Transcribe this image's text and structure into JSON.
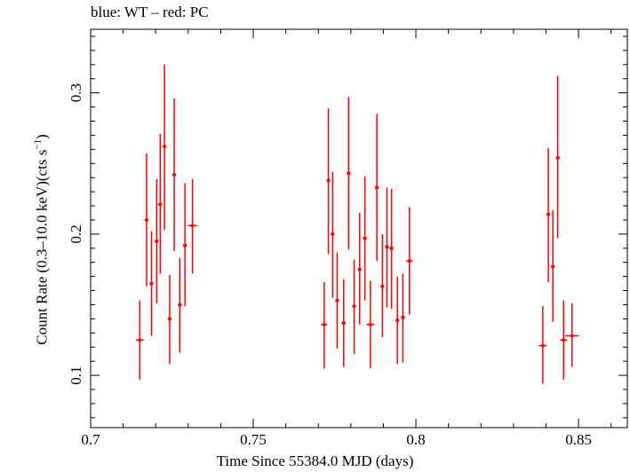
{
  "chart_data": {
    "type": "scatter",
    "title": "blue: WT – red: PC",
    "xlabel": "Time Since 55384.0 MJD (days)",
    "ylabel": "Count Rate (0.3–10.0 keV)(cts s",
    "ylabel_unit_exp": "−1",
    "ylabel_close": ")",
    "xlim": [
      0.7,
      0.865
    ],
    "ylim": [
      0.063,
      0.345
    ],
    "xticks": [
      0.7,
      0.75,
      0.8,
      0.85
    ],
    "xtick_labels": [
      "0.7",
      "0.75",
      "0.8",
      "0.85"
    ],
    "yticks": [
      0.1,
      0.2,
      0.3
    ],
    "ytick_labels": [
      "0.1",
      "0.2",
      "0.3"
    ],
    "grid": false,
    "series": [
      {
        "color": "#ff0000",
        "points": [
          {
            "x": 0.7151,
            "y": 0.125,
            "ylo": 0.097,
            "yhi": 0.153,
            "xerr": 0.0012
          },
          {
            "x": 0.7172,
            "y": 0.21,
            "ylo": 0.163,
            "yhi": 0.257,
            "xerr": 0.0006
          },
          {
            "x": 0.7187,
            "y": 0.165,
            "ylo": 0.128,
            "yhi": 0.202,
            "xerr": 0.0006
          },
          {
            "x": 0.7203,
            "y": 0.195,
            "ylo": 0.151,
            "yhi": 0.239,
            "xerr": 0.0006
          },
          {
            "x": 0.7214,
            "y": 0.221,
            "ylo": 0.172,
            "yhi": 0.271,
            "xerr": 0.0006
          },
          {
            "x": 0.7227,
            "y": 0.262,
            "ylo": 0.203,
            "yhi": 0.32,
            "xerr": 0.0006
          },
          {
            "x": 0.7243,
            "y": 0.14,
            "ylo": 0.108,
            "yhi": 0.171,
            "xerr": 0.0006
          },
          {
            "x": 0.7257,
            "y": 0.242,
            "ylo": 0.188,
            "yhi": 0.296,
            "xerr": 0.0006
          },
          {
            "x": 0.7274,
            "y": 0.15,
            "ylo": 0.116,
            "yhi": 0.183,
            "xerr": 0.0006
          },
          {
            "x": 0.729,
            "y": 0.192,
            "ylo": 0.149,
            "yhi": 0.236,
            "xerr": 0.0006
          },
          {
            "x": 0.7313,
            "y": 0.206,
            "ylo": 0.172,
            "yhi": 0.239,
            "xerr": 0.0014
          },
          {
            "x": 0.7718,
            "y": 0.136,
            "ylo": 0.105,
            "yhi": 0.166,
            "xerr": 0.001
          },
          {
            "x": 0.7731,
            "y": 0.238,
            "ylo": 0.186,
            "yhi": 0.289,
            "xerr": 0.0005
          },
          {
            "x": 0.7744,
            "y": 0.2,
            "ylo": 0.155,
            "yhi": 0.244,
            "xerr": 0.0006
          },
          {
            "x": 0.7758,
            "y": 0.153,
            "ylo": 0.119,
            "yhi": 0.187,
            "xerr": 0.0006
          },
          {
            "x": 0.7778,
            "y": 0.137,
            "ylo": 0.106,
            "yhi": 0.168,
            "xerr": 0.0006
          },
          {
            "x": 0.7793,
            "y": 0.243,
            "ylo": 0.189,
            "yhi": 0.297,
            "xerr": 0.0006
          },
          {
            "x": 0.781,
            "y": 0.149,
            "ylo": 0.115,
            "yhi": 0.182,
            "xerr": 0.0006
          },
          {
            "x": 0.7827,
            "y": 0.175,
            "ylo": 0.136,
            "yhi": 0.215,
            "xerr": 0.0006
          },
          {
            "x": 0.7843,
            "y": 0.197,
            "ylo": 0.153,
            "yhi": 0.241,
            "xerr": 0.0006
          },
          {
            "x": 0.786,
            "y": 0.136,
            "ylo": 0.105,
            "yhi": 0.167,
            "xerr": 0.0012
          },
          {
            "x": 0.788,
            "y": 0.233,
            "ylo": 0.181,
            "yhi": 0.285,
            "xerr": 0.0006
          },
          {
            "x": 0.7897,
            "y": 0.163,
            "ylo": 0.127,
            "yhi": 0.2,
            "xerr": 0.0006
          },
          {
            "x": 0.7911,
            "y": 0.191,
            "ylo": 0.148,
            "yhi": 0.233,
            "xerr": 0.0005
          },
          {
            "x": 0.7925,
            "y": 0.19,
            "ylo": 0.147,
            "yhi": 0.232,
            "xerr": 0.0006
          },
          {
            "x": 0.7943,
            "y": 0.139,
            "ylo": 0.108,
            "yhi": 0.17,
            "xerr": 0.0006
          },
          {
            "x": 0.796,
            "y": 0.141,
            "ylo": 0.109,
            "yhi": 0.172,
            "xerr": 0.0006
          },
          {
            "x": 0.798,
            "y": 0.181,
            "ylo": 0.143,
            "yhi": 0.219,
            "xerr": 0.001
          },
          {
            "x": 0.839,
            "y": 0.121,
            "ylo": 0.094,
            "yhi": 0.149,
            "xerr": 0.0012
          },
          {
            "x": 0.8407,
            "y": 0.214,
            "ylo": 0.166,
            "yhi": 0.261,
            "xerr": 0.0006
          },
          {
            "x": 0.8421,
            "y": 0.177,
            "ylo": 0.138,
            "yhi": 0.217,
            "xerr": 0.0006
          },
          {
            "x": 0.8436,
            "y": 0.254,
            "ylo": 0.197,
            "yhi": 0.312,
            "xerr": 0.0006
          },
          {
            "x": 0.8454,
            "y": 0.125,
            "ylo": 0.097,
            "yhi": 0.153,
            "xerr": 0.0011
          },
          {
            "x": 0.848,
            "y": 0.128,
            "ylo": 0.106,
            "yhi": 0.151,
            "xerr": 0.0021
          }
        ]
      }
    ]
  }
}
